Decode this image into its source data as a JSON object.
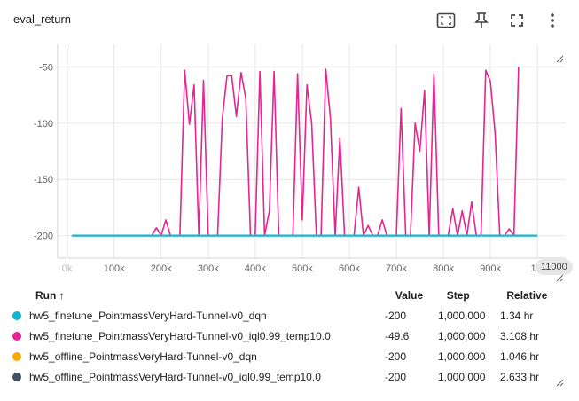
{
  "header": {
    "title": "eval_return",
    "icons": [
      "fit-domain-icon",
      "pin-icon",
      "fullscreen-icon",
      "more-vert-icon"
    ]
  },
  "x_axis_badge": "11000",
  "chart_data": {
    "type": "line",
    "title": "eval_return",
    "xlabel": "",
    "ylabel": "",
    "xlim": [
      -20000,
      1060000
    ],
    "ylim": [
      -220,
      -30
    ],
    "x_ticks": [
      {
        "v": 0,
        "label": "0k",
        "faded": true
      },
      {
        "v": 100000,
        "label": "100k"
      },
      {
        "v": 200000,
        "label": "200k"
      },
      {
        "v": 300000,
        "label": "300k"
      },
      {
        "v": 400000,
        "label": "400k"
      },
      {
        "v": 500000,
        "label": "500k"
      },
      {
        "v": 600000,
        "label": "600k"
      },
      {
        "v": 700000,
        "label": "700k"
      },
      {
        "v": 800000,
        "label": "800k"
      },
      {
        "v": 900000,
        "label": "900k"
      },
      {
        "v": 1000000,
        "label": "1M"
      }
    ],
    "y_ticks": [
      {
        "v": -50,
        "label": "-50"
      },
      {
        "v": -100,
        "label": "-100"
      },
      {
        "v": -150,
        "label": "-150"
      },
      {
        "v": -200,
        "label": "-200"
      }
    ],
    "grid": true,
    "series": [
      {
        "name": "hw5_finetune_PointmassVeryHard-Tunnel-v0_dqn",
        "color": "#12b5cb",
        "points": [
          [
            10000,
            -200
          ],
          [
            1000000,
            -200
          ]
        ]
      },
      {
        "name": "hw5_finetune_PointmassVeryHard-Tunnel-v0_iql0.99_temp10.0",
        "color": "#e52592",
        "points": [
          [
            10000,
            -200
          ],
          [
            180000,
            -200
          ],
          [
            190000,
            -193
          ],
          [
            200000,
            -200
          ],
          [
            210000,
            -186
          ],
          [
            220000,
            -200
          ],
          [
            240000,
            -200
          ],
          [
            250000,
            -53
          ],
          [
            260000,
            -101
          ],
          [
            270000,
            -66
          ],
          [
            280000,
            -200
          ],
          [
            290000,
            -62
          ],
          [
            300000,
            -200
          ],
          [
            320000,
            -200
          ],
          [
            330000,
            -96
          ],
          [
            340000,
            -58
          ],
          [
            350000,
            -58
          ],
          [
            360000,
            -94
          ],
          [
            370000,
            -55
          ],
          [
            380000,
            -78
          ],
          [
            390000,
            -200
          ],
          [
            400000,
            -200
          ],
          [
            410000,
            -54
          ],
          [
            420000,
            -200
          ],
          [
            430000,
            -178
          ],
          [
            440000,
            -54
          ],
          [
            450000,
            -200
          ],
          [
            460000,
            -200
          ],
          [
            470000,
            -200
          ],
          [
            480000,
            -200
          ],
          [
            490000,
            -56
          ],
          [
            500000,
            -186
          ],
          [
            510000,
            -66
          ],
          [
            520000,
            -100
          ],
          [
            530000,
            -200
          ],
          [
            540000,
            -200
          ],
          [
            550000,
            -52
          ],
          [
            560000,
            -96
          ],
          [
            570000,
            -200
          ],
          [
            580000,
            -113
          ],
          [
            590000,
            -200
          ],
          [
            600000,
            -200
          ],
          [
            610000,
            -200
          ],
          [
            620000,
            -157
          ],
          [
            630000,
            -200
          ],
          [
            640000,
            -191
          ],
          [
            650000,
            -200
          ],
          [
            660000,
            -200
          ],
          [
            670000,
            -186
          ],
          [
            680000,
            -200
          ],
          [
            690000,
            -200
          ],
          [
            700000,
            -200
          ],
          [
            710000,
            -87
          ],
          [
            720000,
            -200
          ],
          [
            730000,
            -200
          ],
          [
            740000,
            -100
          ],
          [
            750000,
            -125
          ],
          [
            760000,
            -71
          ],
          [
            770000,
            -200
          ],
          [
            780000,
            -56
          ],
          [
            790000,
            -200
          ],
          [
            800000,
            -200
          ],
          [
            810000,
            -200
          ],
          [
            820000,
            -176
          ],
          [
            830000,
            -200
          ],
          [
            840000,
            -178
          ],
          [
            850000,
            -200
          ],
          [
            860000,
            -170
          ],
          [
            870000,
            -200
          ],
          [
            880000,
            -200
          ],
          [
            890000,
            -53
          ],
          [
            900000,
            -63
          ],
          [
            910000,
            -109
          ],
          [
            920000,
            -200
          ],
          [
            930000,
            -200
          ],
          [
            940000,
            -194
          ],
          [
            950000,
            -200
          ],
          [
            960000,
            -50
          ]
        ]
      }
    ]
  },
  "table": {
    "headers": {
      "run": "Run ↑",
      "value": "Value",
      "step": "Step",
      "relative": "Relative"
    },
    "rows": [
      {
        "color": "#12b5cb",
        "run": "hw5_finetune_PointmassVeryHard-Tunnel-v0_dqn",
        "value": "-200",
        "step": "1,000,000",
        "relative": "1.34 hr"
      },
      {
        "color": "#e52592",
        "run": "hw5_finetune_PointmassVeryHard-Tunnel-v0_iql0.99_temp10.0",
        "value": "-49.6",
        "step": "1,000,000",
        "relative": "3.108 hr"
      },
      {
        "color": "#f9ab00",
        "run": "hw5_offline_PointmassVeryHard-Tunnel-v0_dqn",
        "value": "-200",
        "step": "1,000,000",
        "relative": "1.046 hr"
      },
      {
        "color": "#425066",
        "run": "hw5_offline_PointmassVeryHard-Tunnel-v0_iql0.99_temp10.0",
        "value": "-200",
        "step": "1,000,000",
        "relative": "2.633 hr"
      }
    ]
  }
}
